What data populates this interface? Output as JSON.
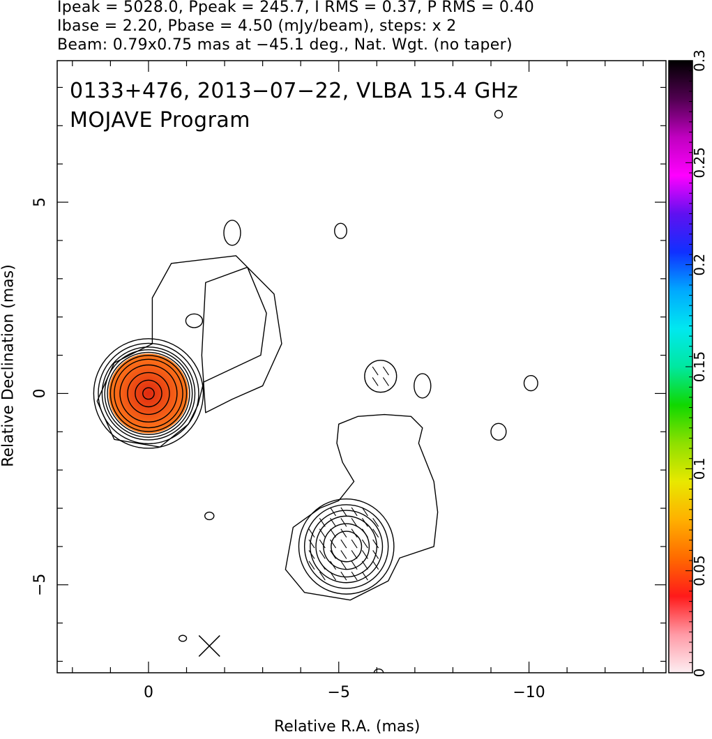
{
  "header": {
    "line1": "Ipeak = 5028.0, Ppeak = 245.7, I RMS = 0.37, P RMS = 0.40",
    "line2": "Ibase = 2.20, Pbase = 4.50 (mJy/beam), steps: x 2",
    "line3": "Beam: 0.79x0.75 mas at −45.1 deg., Nat. Wgt. (no taper)"
  },
  "overlay": {
    "source_line": "0133+476, 2013−07−22, VLBA 15.4 GHz",
    "program_line": "MOJAVE Program"
  },
  "chart_data": {
    "type": "heatmap",
    "title": "0133+476, 2013−07−22, VLBA 15.4 GHz",
    "subtitle": "MOJAVE Program",
    "xlabel": "Relative R.A. (mas)",
    "ylabel": "Relative Declination (mas)",
    "xlim": [
      2.4,
      -13.6
    ],
    "ylim": [
      -7.3,
      8.7
    ],
    "x_ticks": [
      {
        "value": 0,
        "label": "0"
      },
      {
        "value": -5,
        "label": "−5"
      },
      {
        "value": -10,
        "label": "−10"
      }
    ],
    "y_ticks": [
      {
        "value": 5,
        "label": "5"
      },
      {
        "value": 0,
        "label": "0"
      },
      {
        "value": -5,
        "label": "−5"
      }
    ],
    "colorbar": {
      "range": [
        0,
        0.3
      ],
      "ticks": [
        {
          "value": 0,
          "label": "0"
        },
        {
          "value": 0.05,
          "label": "0.05"
        },
        {
          "value": 0.1,
          "label": "0.1"
        },
        {
          "value": 0.15,
          "label": "0.15"
        },
        {
          "value": 0.2,
          "label": "0.2"
        },
        {
          "value": 0.25,
          "label": "0.25"
        },
        {
          "value": 0.3,
          "label": "0.3"
        }
      ],
      "stops": [
        "#fdeef2",
        "#ff9aa6",
        "#ff1a1a",
        "#ff6a00",
        "#ffb000",
        "#e8e800",
        "#8ee000",
        "#10d800",
        "#00e8a0",
        "#00e8f0",
        "#00a8ff",
        "#1030ff",
        "#6010f0",
        "#ff00ff",
        "#c000c0",
        "#500050",
        "#000000"
      ]
    },
    "core": {
      "x": 0,
      "y": 0,
      "radius": 1.05,
      "color_inner": "#e02a10",
      "color_outer": "#ff7a1a"
    },
    "contours": [
      {
        "center": [
          0,
          0
        ],
        "radii": [
          0.15,
          0.35,
          0.55,
          0.75,
          0.9,
          1.0,
          1.08,
          1.15,
          1.22,
          1.32,
          1.44
        ]
      },
      {
        "center": [
          -5.2,
          -4.0
        ],
        "radii": [
          0.4,
          0.6,
          0.8,
          0.95,
          1.1,
          1.25
        ]
      },
      {
        "outline": [
          [
            -1.4,
            1.0
          ],
          [
            -1.5,
            2.9
          ],
          [
            -2.6,
            3.3
          ],
          [
            -3.1,
            2.1
          ],
          [
            -2.95,
            1.0
          ],
          [
            -2.2,
            0.65
          ],
          [
            -1.45,
            0.3
          ],
          [
            -1.3,
            -0.3
          ],
          [
            -1.05,
            -0.8
          ],
          [
            -0.3,
            -1.4
          ],
          [
            0.9,
            -1.2
          ],
          [
            1.35,
            -0.2
          ],
          [
            0.9,
            0.8
          ],
          [
            -0.1,
            1.3
          ],
          [
            -0.1,
            2.5
          ],
          [
            -0.6,
            3.4
          ],
          [
            -2.3,
            3.6
          ],
          [
            -3.3,
            2.6
          ],
          [
            -3.5,
            1.3
          ],
          [
            -3.0,
            0.2
          ],
          [
            -2.2,
            -0.15
          ],
          [
            -1.5,
            -0.5
          ],
          [
            -1.4,
            1.0
          ]
        ]
      },
      {
        "outline": [
          [
            -4.5,
            -3.0
          ],
          [
            -3.8,
            -3.5
          ],
          [
            -3.6,
            -4.6
          ],
          [
            -4.1,
            -5.2
          ],
          [
            -5.3,
            -5.4
          ],
          [
            -6.3,
            -4.9
          ],
          [
            -6.6,
            -4.3
          ],
          [
            -7.5,
            -4.0
          ],
          [
            -7.6,
            -3.1
          ],
          [
            -7.5,
            -2.3
          ],
          [
            -7.1,
            -1.3
          ],
          [
            -7.2,
            -0.9
          ],
          [
            -6.9,
            -0.6
          ],
          [
            -6.2,
            -0.55
          ],
          [
            -5.5,
            -0.6
          ],
          [
            -5.0,
            -0.8
          ],
          [
            -4.95,
            -1.3
          ],
          [
            -5.1,
            -1.8
          ],
          [
            -5.4,
            -2.3
          ],
          [
            -5.0,
            -2.8
          ],
          [
            -4.5,
            -3.0
          ]
        ]
      }
    ],
    "small_blobs": [
      {
        "x": -2.2,
        "y": 4.2,
        "rx": 0.22,
        "ry": 0.33
      },
      {
        "x": -5.05,
        "y": 4.25,
        "rx": 0.16,
        "ry": 0.2
      },
      {
        "x": -1.2,
        "y": 1.9,
        "rx": 0.22,
        "ry": 0.18
      },
      {
        "x": -6.1,
        "y": 0.45,
        "rx": 0.42,
        "ry": 0.42
      },
      {
        "x": -7.2,
        "y": 0.2,
        "rx": 0.22,
        "ry": 0.32
      },
      {
        "x": -10.05,
        "y": 0.27,
        "rx": 0.18,
        "ry": 0.2
      },
      {
        "x": -9.2,
        "y": -1.0,
        "rx": 0.2,
        "ry": 0.22
      },
      {
        "x": -1.6,
        "y": -3.2,
        "rx": 0.12,
        "ry": 0.1
      },
      {
        "x": -0.9,
        "y": -6.4,
        "rx": 0.1,
        "ry": 0.08
      },
      {
        "x": -9.2,
        "y": 7.3,
        "rx": 0.1,
        "ry": 0.1
      },
      {
        "x": -6.05,
        "y": -7.3,
        "rx": 0.12,
        "ry": 0.1
      }
    ],
    "polarization_regions": [
      {
        "x": -5.2,
        "y": -4.0,
        "r": 1.05
      },
      {
        "x": -6.1,
        "y": 0.45,
        "r": 0.42
      }
    ],
    "beam": {
      "x": -1.6,
      "y": -6.6,
      "major": 0.79,
      "minor": 0.75,
      "pa_deg": -45.1
    }
  }
}
